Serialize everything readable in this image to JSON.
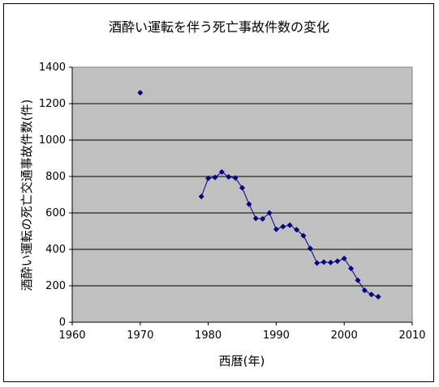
{
  "chart_data": {
    "type": "scatter",
    "title": "酒酔い運転を伴う死亡事故件数の変化",
    "xlabel": "西暦(年)",
    "ylabel": "酒酔い運転の死亡交通事故件数(件)",
    "xlim": [
      1960,
      2010
    ],
    "ylim": [
      0,
      1400
    ],
    "xticks": [
      1960,
      1970,
      1980,
      1990,
      2000,
      2010
    ],
    "yticks": [
      0,
      200,
      400,
      600,
      800,
      1000,
      1200,
      1400
    ],
    "grid": true,
    "legend": "none",
    "colors": {
      "plot_bg": "#c0c0c0",
      "series": "#000080",
      "grid": "#000000"
    },
    "isolated_points": [
      {
        "x": 1970,
        "y": 1260
      }
    ],
    "series": [
      {
        "x": [
          1979,
          1980,
          1981,
          1982,
          1983,
          1984,
          1985,
          1986,
          1987,
          1988,
          1989,
          1990,
          1991,
          1992,
          1993,
          1994,
          1995,
          1996,
          1997,
          1998,
          1999,
          2000,
          2001,
          2002,
          2003,
          2004,
          2005
        ],
        "y": [
          690,
          790,
          795,
          825,
          798,
          792,
          738,
          648,
          570,
          568,
          600,
          510,
          525,
          533,
          508,
          475,
          405,
          325,
          330,
          328,
          335,
          350,
          295,
          230,
          175,
          152,
          140
        ]
      }
    ]
  }
}
